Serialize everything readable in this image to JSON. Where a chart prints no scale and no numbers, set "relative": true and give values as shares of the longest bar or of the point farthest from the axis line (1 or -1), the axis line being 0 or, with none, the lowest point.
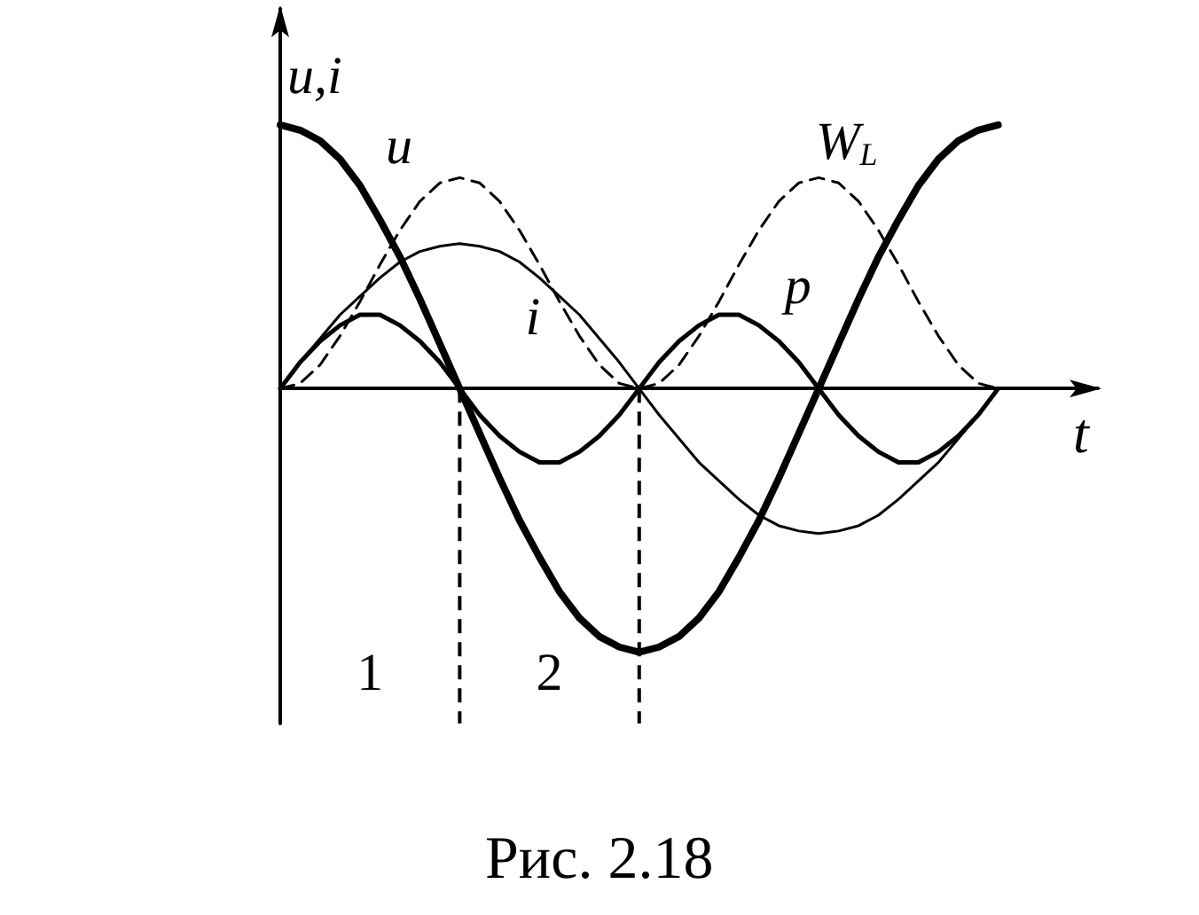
{
  "chart_data": {
    "type": "line",
    "relative": true,
    "xlabel": "t",
    "ylabel": "u,i",
    "grid": false,
    "legend": false,
    "marker": "none",
    "categories": [
      null,
      null,
      null,
      null,
      null,
      null,
      null,
      null,
      null,
      null,
      null,
      null,
      null,
      null,
      null,
      null,
      null,
      null,
      null,
      null,
      null,
      null,
      null,
      null,
      null,
      null,
      null,
      null,
      null,
      null,
      null,
      null,
      null,
      null,
      null,
      null,
      null,
      null,
      null,
      null,
      null,
      null
    ],
    "series": [
      {
        "name": "u",
        "color": "#000000",
        "line_style": "solid",
        "values": [
          1,
          0.98,
          0.94,
          0.87,
          0.77,
          0.64,
          0.5,
          0.34,
          0.17,
          0,
          -0.17,
          -0.34,
          -0.5,
          -0.64,
          -0.77,
          -0.87,
          -0.94,
          -0.98,
          -1,
          -0.98,
          -0.94,
          -0.87,
          -0.77,
          -0.64,
          -0.5,
          -0.34,
          -0.17,
          0,
          0.17,
          0.34,
          0.5,
          0.64,
          0.77,
          0.87,
          0.94,
          0.98,
          1,
          null,
          null,
          null,
          null,
          null
        ]
      },
      {
        "name": "i",
        "color": "#000000",
        "line_style": "solid",
        "values": [
          0,
          0.1,
          0.19,
          0.28,
          0.35,
          0.42,
          0.48,
          0.52,
          0.54,
          0.55,
          0.54,
          0.52,
          0.48,
          0.42,
          0.35,
          0.28,
          0.19,
          0.1,
          0,
          -0.1,
          -0.19,
          -0.28,
          -0.35,
          -0.42,
          -0.48,
          -0.52,
          -0.54,
          -0.55,
          -0.54,
          -0.52,
          -0.48,
          -0.42,
          -0.35,
          -0.28,
          -0.19,
          -0.1,
          0,
          null,
          null,
          null,
          null,
          null
        ]
      },
      {
        "name": "p",
        "color": "#000000",
        "line_style": "solid",
        "values": [
          0,
          0.1,
          0.18,
          0.24,
          0.28,
          0.28,
          0.24,
          0.18,
          0.1,
          0,
          -0.1,
          -0.18,
          -0.24,
          -0.28,
          -0.28,
          -0.24,
          -0.18,
          -0.1,
          0,
          0.1,
          0.18,
          0.24,
          0.28,
          0.28,
          0.24,
          0.18,
          0.1,
          0,
          -0.1,
          -0.18,
          -0.24,
          -0.28,
          -0.28,
          -0.24,
          -0.18,
          -0.1,
          0,
          null,
          null,
          null,
          null,
          null
        ]
      },
      {
        "name": "W$_{L}$",
        "color": "#000000",
        "line_style": "dashed",
        "values": [
          0,
          0.02,
          0.09,
          0.2,
          0.33,
          0.47,
          0.6,
          0.71,
          0.78,
          0.8,
          0.78,
          0.71,
          0.6,
          0.47,
          0.33,
          0.2,
          0.09,
          0.02,
          0,
          0.02,
          0.09,
          0.2,
          0.33,
          0.47,
          0.6,
          0.71,
          0.78,
          0.8,
          0.78,
          0.71,
          0.6,
          0.47,
          0.33,
          0.2,
          0.09,
          0.02,
          0,
          null,
          null,
          null,
          null,
          null
        ]
      }
    ],
    "annotations": [
      "1",
      "2",
      "Рис. 2.18"
    ]
  }
}
